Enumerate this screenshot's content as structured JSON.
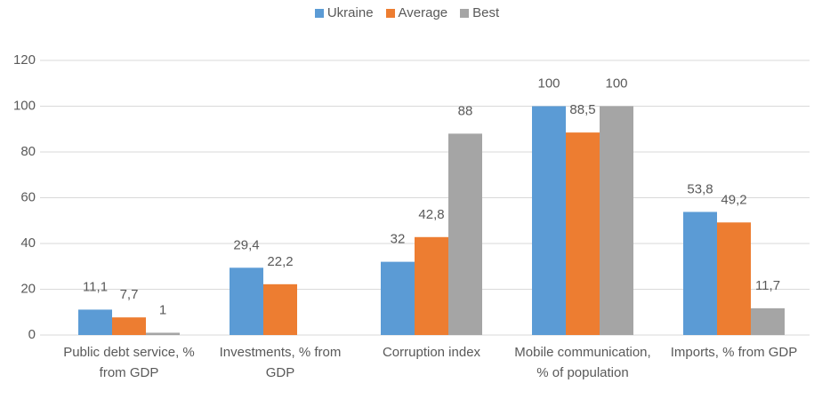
{
  "chart_data": {
    "type": "bar",
    "categories": [
      "Public debt service, % from GDP",
      "Investments, % from GDP",
      "Corruption index",
      "Mobile communication, % of population",
      "Imports, % from GDP"
    ],
    "series": [
      {
        "name": "Ukraine",
        "color": "#5b9bd5",
        "values": [
          11.1,
          29.4,
          32,
          100,
          53.8
        ],
        "value_labels": [
          "11,1",
          "29,4",
          "32",
          "100",
          "53,8"
        ]
      },
      {
        "name": "Average",
        "color": "#ed7d31",
        "values": [
          7.7,
          22.2,
          42.8,
          88.5,
          49.2
        ],
        "value_labels": [
          "7,7",
          "22,2",
          "42,8",
          "88,5",
          "49,2"
        ]
      },
      {
        "name": "Best",
        "color": "#a5a5a5",
        "values": [
          1,
          null,
          88,
          100,
          11.7
        ],
        "value_labels": [
          "1",
          null,
          "88",
          "100",
          "11,7"
        ]
      }
    ],
    "ylim": [
      0,
      120
    ],
    "yticks": [
      0,
      20,
      40,
      60,
      80,
      100,
      120
    ],
    "grid": true,
    "legend": "top"
  }
}
